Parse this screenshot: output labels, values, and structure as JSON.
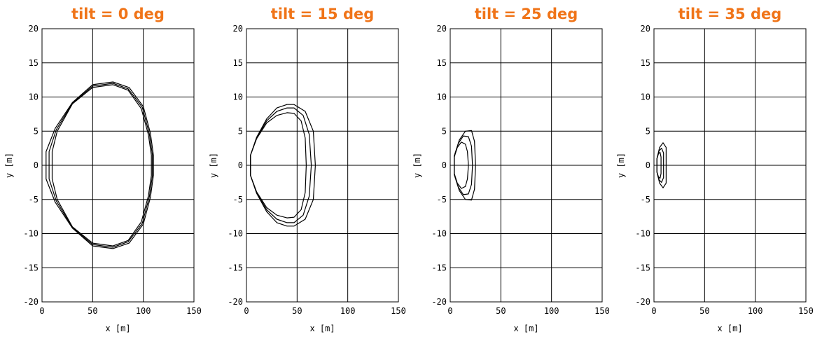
{
  "colors": {
    "title": "#f07418",
    "lines": "#000000",
    "background": "#ffffff"
  },
  "chart_data": [
    {
      "type": "line",
      "title": "tilt = 0 deg",
      "xlabel": "x [m]",
      "ylabel": "y [m]",
      "xlim": [
        0,
        150
      ],
      "ylim": [
        -20,
        20
      ],
      "xticks": [
        "0",
        "50",
        "100",
        "150"
      ],
      "yticks": [
        "20",
        "15",
        "10",
        "5",
        "0",
        "-5",
        "-10",
        "-15",
        "-20"
      ],
      "grid": true,
      "series": [
        {
          "x": [
            15,
            30,
            50,
            70,
            85,
            98,
            105,
            108,
            108,
            105,
            98,
            85,
            70,
            50,
            30,
            15,
            10,
            10,
            15
          ],
          "y": [
            5,
            9,
            11.4,
            11.8,
            11,
            8.3,
            4.5,
            1.5,
            -1.5,
            -4.5,
            -8.3,
            -11,
            -11.8,
            -11.4,
            -9,
            -5,
            -2,
            2,
            5
          ]
        },
        {
          "x": [
            14,
            30,
            50,
            70,
            85,
            99,
            106,
            109,
            109,
            106,
            99,
            85,
            70,
            50,
            30,
            14,
            7,
            7,
            14
          ],
          "y": [
            5.2,
            9.1,
            11.6,
            12,
            11.2,
            8.5,
            4.6,
            1.5,
            -1.5,
            -4.6,
            -8.5,
            -11.2,
            -12,
            -11.6,
            -9.1,
            -5.2,
            -2,
            2,
            5.2
          ]
        },
        {
          "x": [
            13,
            30,
            50,
            70,
            86,
            100,
            107,
            110,
            110,
            107,
            100,
            86,
            70,
            50,
            30,
            13,
            4,
            4,
            13
          ],
          "y": [
            5.4,
            9.2,
            11.8,
            12.2,
            11.4,
            8.6,
            4.7,
            1.5,
            -1.5,
            -4.7,
            -8.6,
            -11.4,
            -12.2,
            -11.8,
            -9.2,
            -5.4,
            -2,
            2,
            5.4
          ]
        }
      ]
    },
    {
      "type": "line",
      "title": "tilt = 15 deg",
      "xlabel": "x [m]",
      "ylabel": "y [m]",
      "xlim": [
        0,
        150
      ],
      "ylim": [
        -20,
        20
      ],
      "xticks": [
        "0",
        "50",
        "100",
        "150"
      ],
      "yticks": [
        "20",
        "15",
        "10",
        "5",
        "0",
        "-5",
        "-10",
        "-15",
        "-20"
      ],
      "grid": true,
      "series": [
        {
          "x": [
            4,
            10,
            20,
            30,
            40,
            47,
            54,
            58,
            59,
            58,
            54,
            47,
            40,
            30,
            20,
            10,
            4,
            4
          ],
          "y": [
            1.5,
            3.9,
            6.2,
            7.3,
            7.7,
            7.6,
            6.5,
            4,
            0,
            -4,
            -6.5,
            -7.6,
            -7.7,
            -7.3,
            -6.2,
            -3.9,
            -1.5,
            1.5
          ]
        },
        {
          "x": [
            4,
            10,
            20,
            30,
            40,
            47,
            56,
            62,
            64,
            62,
            56,
            47,
            40,
            30,
            20,
            10,
            4,
            4
          ],
          "y": [
            1.5,
            4,
            6.5,
            7.9,
            8.4,
            8.4,
            7.3,
            4.5,
            0,
            -4.5,
            -7.3,
            -8.4,
            -8.4,
            -7.9,
            -6.5,
            -4,
            -1.5,
            1.5
          ]
        },
        {
          "x": [
            4,
            10,
            20,
            30,
            40,
            47,
            58,
            66,
            68,
            66,
            58,
            47,
            40,
            30,
            20,
            10,
            4,
            4
          ],
          "y": [
            1.5,
            4.1,
            6.8,
            8.4,
            8.9,
            8.9,
            7.9,
            5,
            0,
            -5,
            -7.9,
            -8.9,
            -8.9,
            -8.4,
            -6.8,
            -4.1,
            -1.5,
            1.5
          ]
        }
      ]
    },
    {
      "type": "line",
      "title": "tilt = 25 deg",
      "xlabel": "x [m]",
      "ylabel": "y [m]",
      "xlim": [
        0,
        150
      ],
      "ylim": [
        -20,
        20
      ],
      "xticks": [
        "0",
        "50",
        "100",
        "150"
      ],
      "yticks": [
        "20",
        "15",
        "10",
        "5",
        "0",
        "-5",
        "-10",
        "-15",
        "-20"
      ],
      "grid": true,
      "series": [
        {
          "x": [
            4,
            7,
            11,
            15,
            17,
            18,
            17,
            15,
            11,
            7,
            4,
            4
          ],
          "y": [
            1.2,
            2.6,
            3.4,
            3.1,
            2,
            0,
            -2,
            -3.1,
            -3.4,
            -2.6,
            -1.2,
            1.2
          ]
        },
        {
          "x": [
            4,
            8,
            13,
            18,
            21,
            22,
            21,
            18,
            13,
            8,
            4,
            4
          ],
          "y": [
            1.3,
            3.2,
            4.3,
            4.2,
            2.8,
            0,
            -2.8,
            -4.2,
            -4.3,
            -3.2,
            -1.3,
            1.3
          ]
        },
        {
          "x": [
            4,
            9,
            15,
            21,
            24,
            25,
            24,
            21,
            15,
            9,
            4,
            4
          ],
          "y": [
            1.4,
            3.7,
            5,
            5.1,
            3.5,
            0,
            -3.5,
            -5.1,
            -5,
            -3.7,
            -1.4,
            1.4
          ]
        }
      ]
    },
    {
      "type": "line",
      "title": "tilt = 35 deg",
      "xlabel": "x [m]",
      "ylabel": "y [m]",
      "xlim": [
        0,
        150
      ],
      "ylim": [
        -20,
        20
      ],
      "xticks": [
        "0",
        "50",
        "100",
        "150"
      ],
      "yticks": [
        "20",
        "15",
        "10",
        "5",
        "0",
        "-5",
        "-10",
        "-15",
        "-20"
      ],
      "grid": true,
      "series": [
        {
          "x": [
            3,
            4.5,
            6,
            7,
            7,
            6,
            4.5,
            3,
            3
          ],
          "y": [
            1,
            1.7,
            1.9,
            1.2,
            -1.2,
            -1.9,
            -1.7,
            -1,
            1
          ]
        },
        {
          "x": [
            3,
            5,
            7.5,
            9.5,
            9.5,
            7.5,
            5,
            3,
            3
          ],
          "y": [
            1,
            2.1,
            2.5,
            1.8,
            -1.8,
            -2.5,
            -2.1,
            -1,
            1
          ]
        },
        {
          "x": [
            3,
            5.5,
            9,
            12,
            12,
            9,
            5.5,
            3,
            3
          ],
          "y": [
            1,
            2.6,
            3.3,
            2.6,
            -2.6,
            -3.3,
            -2.6,
            -1,
            1
          ]
        }
      ]
    }
  ]
}
